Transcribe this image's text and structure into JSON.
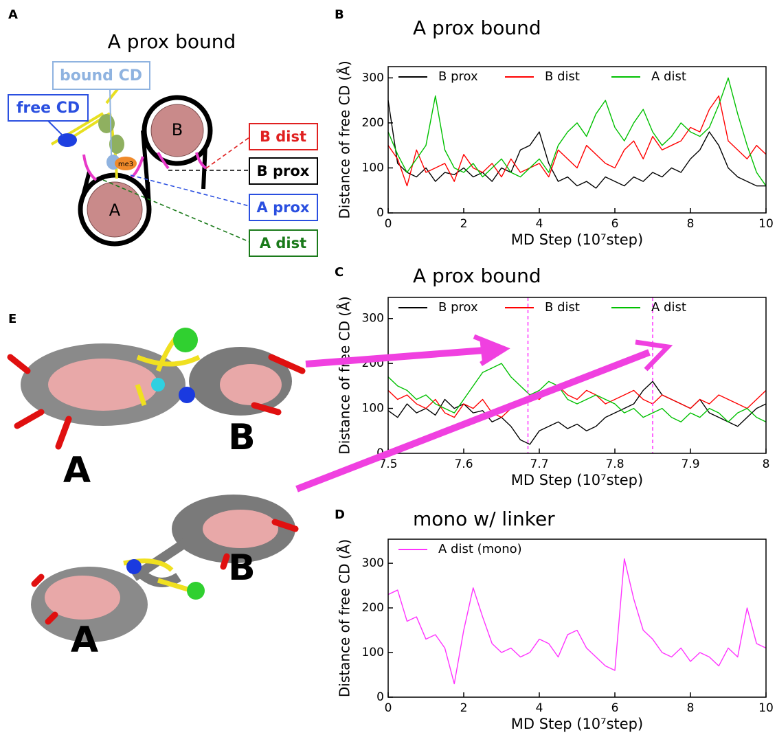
{
  "panel_labels": [
    "A",
    "B",
    "C",
    "D",
    "E"
  ],
  "diagram": {
    "title": "A prox bound",
    "bound_cd": "bound CD",
    "free_cd": "free CD",
    "modification": "me3",
    "nucleosome_a": "A",
    "nucleosome_b": "B",
    "distances": [
      "B dist",
      "B prox",
      "A prox",
      "A dist"
    ]
  },
  "structures": {
    "labels": [
      "A",
      "B",
      "A",
      "B"
    ]
  },
  "chart_data": [
    {
      "type": "line",
      "title": "A prox bound",
      "x_label": "MD Step (10⁷step)",
      "y_label": "Distance of free CD (Å)",
      "x": [
        0,
        0.25,
        0.5,
        0.75,
        1,
        1.25,
        1.5,
        1.75,
        2,
        2.25,
        2.5,
        2.75,
        3,
        3.25,
        3.5,
        3.75,
        4,
        4.25,
        4.5,
        4.75,
        5,
        5.25,
        5.5,
        5.75,
        6,
        6.25,
        6.5,
        6.75,
        7,
        7.25,
        7.5,
        7.75,
        8,
        8.25,
        8.5,
        8.75,
        9,
        9.25,
        9.5,
        9.75,
        10
      ],
      "series": [
        {
          "name": "B prox",
          "color": "#000000",
          "values": [
            250,
            110,
            90,
            80,
            100,
            70,
            90,
            85,
            100,
            80,
            90,
            70,
            100,
            90,
            140,
            150,
            180,
            110,
            70,
            80,
            60,
            70,
            55,
            80,
            70,
            60,
            80,
            70,
            90,
            80,
            100,
            90,
            120,
            140,
            180,
            150,
            100,
            80,
            70,
            60,
            60
          ]
        },
        {
          "name": "B dist",
          "color": "#ff0000",
          "values": [
            150,
            120,
            60,
            140,
            90,
            100,
            110,
            70,
            130,
            100,
            90,
            110,
            80,
            120,
            90,
            100,
            110,
            80,
            140,
            120,
            100,
            150,
            130,
            110,
            100,
            140,
            160,
            120,
            170,
            140,
            150,
            160,
            190,
            180,
            230,
            260,
            160,
            140,
            120,
            150,
            130
          ]
        },
        {
          "name": "A dist",
          "color": "#00c000",
          "values": [
            180,
            130,
            90,
            120,
            150,
            260,
            140,
            100,
            90,
            110,
            80,
            100,
            120,
            90,
            80,
            100,
            120,
            90,
            150,
            180,
            200,
            170,
            220,
            250,
            190,
            160,
            200,
            230,
            180,
            150,
            170,
            200,
            180,
            170,
            190,
            240,
            300,
            220,
            150,
            90,
            60
          ]
        }
      ],
      "xlim": [
        0,
        10
      ],
      "ylim": [
        0,
        325
      ],
      "xticks": [
        0,
        2,
        4,
        6,
        8,
        10
      ],
      "yticks": [
        0,
        100,
        200,
        300
      ],
      "legend": "top"
    },
    {
      "type": "line",
      "title": "A prox bound",
      "x_label": "MD Step (10⁷step)",
      "y_label": "Distance of free CD (Å)",
      "x": [
        7.5,
        7.5125,
        7.525,
        7.5375,
        7.55,
        7.5625,
        7.575,
        7.5875,
        7.6,
        7.6125,
        7.625,
        7.6375,
        7.65,
        7.6625,
        7.675,
        7.6875,
        7.7,
        7.7125,
        7.725,
        7.7375,
        7.75,
        7.7625,
        7.775,
        7.7875,
        7.8,
        7.8125,
        7.825,
        7.8375,
        7.85,
        7.8625,
        7.875,
        7.8875,
        7.9,
        7.9125,
        7.925,
        7.9375,
        7.95,
        7.9625,
        7.975,
        7.9875,
        8
      ],
      "series": [
        {
          "name": "B prox",
          "color": "#000000",
          "values": [
            95,
            80,
            110,
            90,
            100,
            85,
            120,
            100,
            110,
            90,
            95,
            70,
            80,
            60,
            30,
            20,
            50,
            60,
            70,
            55,
            65,
            50,
            60,
            80,
            90,
            100,
            110,
            140,
            160,
            130,
            120,
            110,
            100,
            120,
            90,
            80,
            70,
            60,
            80,
            100,
            110
          ]
        },
        {
          "name": "B dist",
          "color": "#ff0000",
          "values": [
            140,
            120,
            130,
            110,
            100,
            120,
            90,
            80,
            110,
            100,
            120,
            90,
            80,
            100,
            110,
            130,
            120,
            140,
            150,
            130,
            120,
            140,
            130,
            110,
            120,
            130,
            140,
            120,
            110,
            130,
            120,
            110,
            100,
            120,
            110,
            130,
            120,
            110,
            100,
            120,
            140
          ]
        },
        {
          "name": "A dist",
          "color": "#00c000",
          "values": [
            170,
            150,
            140,
            120,
            130,
            110,
            100,
            90,
            120,
            150,
            180,
            190,
            200,
            170,
            150,
            130,
            140,
            160,
            150,
            120,
            110,
            120,
            130,
            120,
            110,
            90,
            100,
            80,
            90,
            100,
            80,
            70,
            90,
            80,
            100,
            90,
            70,
            90,
            100,
            80,
            70
          ]
        }
      ],
      "markers": [
        7.685,
        7.85
      ],
      "marker_color": "#ff33ff",
      "xlim": [
        7.5,
        8
      ],
      "ylim": [
        0,
        347
      ],
      "xticks": [
        7.5,
        7.6,
        7.7,
        7.8,
        7.9,
        8
      ],
      "yticks": [
        0,
        100,
        200,
        300
      ],
      "legend": "top"
    },
    {
      "type": "line",
      "title": "mono w/ linker",
      "x_label": "MD Step (10⁷step)",
      "y_label": "Distance of free CD (Å)",
      "x": [
        0,
        0.25,
        0.5,
        0.75,
        1,
        1.25,
        1.5,
        1.75,
        2,
        2.25,
        2.5,
        2.75,
        3,
        3.25,
        3.5,
        3.75,
        4,
        4.25,
        4.5,
        4.75,
        5,
        5.25,
        5.5,
        5.75,
        6,
        6.25,
        6.5,
        6.75,
        7,
        7.25,
        7.5,
        7.75,
        8,
        8.25,
        8.5,
        8.75,
        9,
        9.25,
        9.5,
        9.75,
        10
      ],
      "series": [
        {
          "name": "A dist (mono)",
          "color": "#ff33ff",
          "values": [
            230,
            240,
            170,
            180,
            130,
            140,
            110,
            30,
            150,
            245,
            180,
            120,
            100,
            110,
            90,
            100,
            130,
            120,
            90,
            140,
            150,
            110,
            90,
            70,
            60,
            310,
            220,
            150,
            130,
            100,
            90,
            110,
            80,
            100,
            90,
            70,
            110,
            90,
            200,
            120,
            110
          ]
        }
      ],
      "xlim": [
        0,
        10
      ],
      "ylim": [
        0,
        354
      ],
      "xticks": [
        0,
        2,
        4,
        6,
        8,
        10
      ],
      "yticks": [
        0,
        100,
        200,
        300
      ],
      "legend": "top"
    }
  ]
}
